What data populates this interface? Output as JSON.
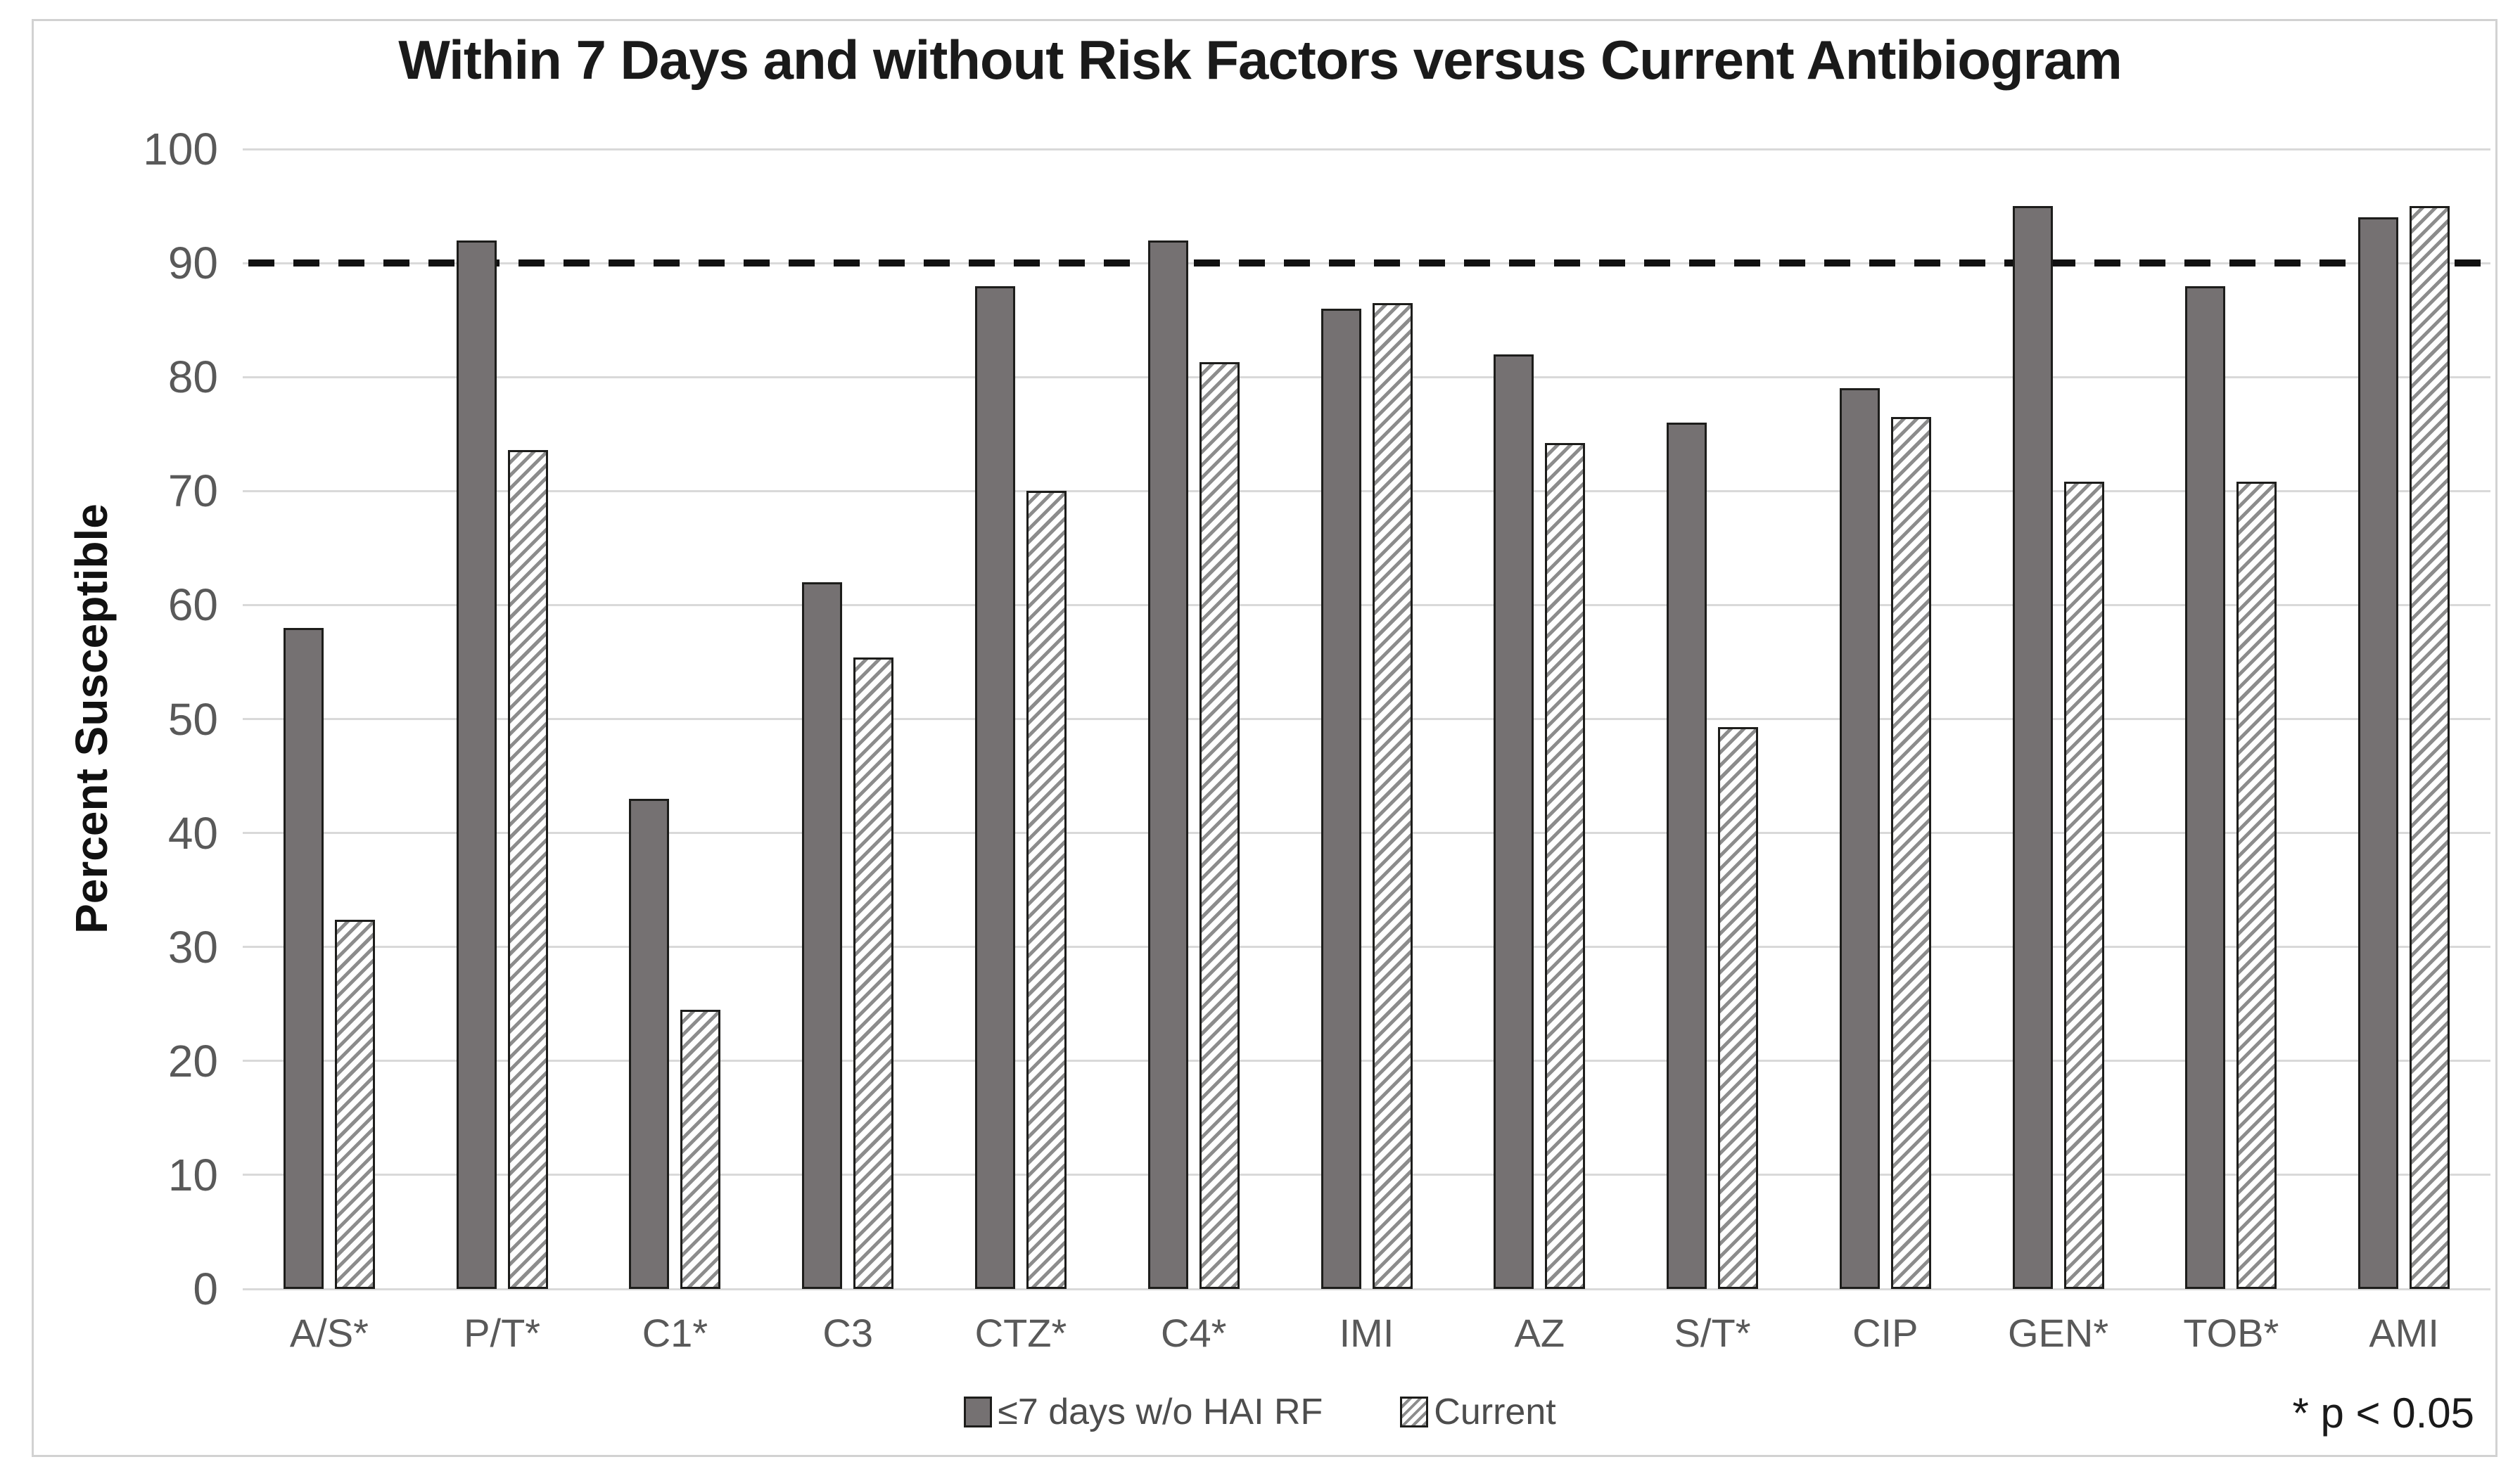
{
  "chart_data": {
    "type": "bar",
    "title": "Within 7 Days and without Risk Factors versus Current Antibiogram",
    "ylabel": "Percent Susceptible",
    "xlabel": "",
    "ylim": [
      0,
      100
    ],
    "yticks": [
      100,
      90,
      80,
      70,
      60,
      50,
      40,
      30,
      20,
      10,
      0
    ],
    "grid": true,
    "legend_position": "bottom",
    "categories": [
      "A/S*",
      "P/T*",
      "C1*",
      "C3",
      "CTZ*",
      "C4*",
      "IMI",
      "AZ",
      "S/T*",
      "CIP",
      "GEN*",
      "TOB*",
      "AMI"
    ],
    "series": [
      {
        "name": "≤7 days w/o HAI RF",
        "pattern": "solid",
        "values": [
          58,
          92,
          43,
          62,
          88,
          92,
          86,
          82,
          76,
          79,
          95,
          88,
          94
        ]
      },
      {
        "name": "Current",
        "pattern": "hatched",
        "values": [
          32.4,
          73.6,
          24.5,
          55.4,
          70,
          81.3,
          86.5,
          74.2,
          49.3,
          76.5,
          70.8,
          70.8,
          95
        ]
      }
    ],
    "reference_line": {
      "value": 90,
      "style": "dashed",
      "color": "#111111"
    },
    "annotation": "* p < 0.05",
    "colors": {
      "solid_fill": "#757172",
      "bar_border": "#1d1d1b",
      "hatch_line": "#8c8c8c",
      "gridline": "#d9d9d9",
      "axis_text": "#595959",
      "title_text": "#1a1a1a",
      "frame_border": "#d2d2d2"
    }
  }
}
